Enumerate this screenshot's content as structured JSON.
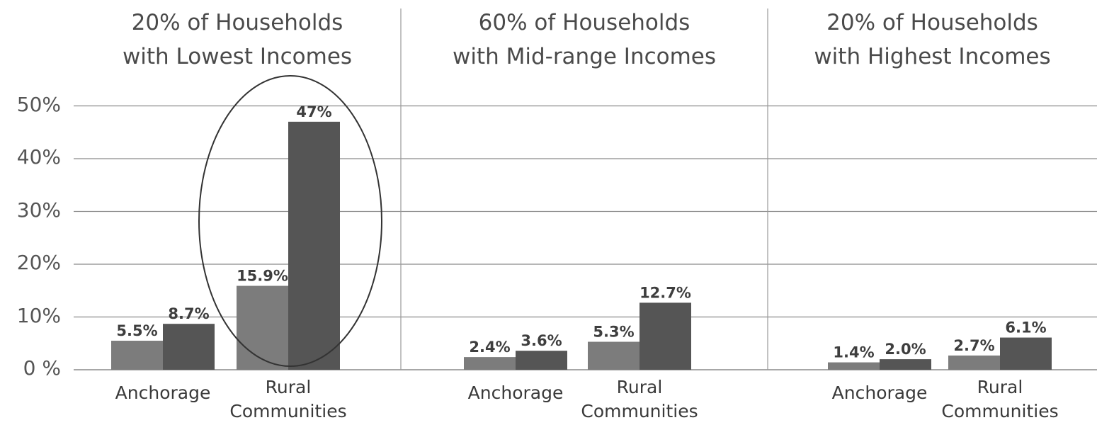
{
  "chart_data": {
    "type": "bar",
    "ylim": [
      0,
      50
    ],
    "yticks": [
      "0 %",
      "10%",
      "20%",
      "30%",
      "40%",
      "50%"
    ],
    "grid": true,
    "colors": {
      "bar_light": "#7c7c7c",
      "bar_dark": "#555555",
      "grid": "#8a8a8a",
      "annotation": "#333333"
    },
    "panels": [
      {
        "title": [
          "20% of Households",
          "with Lowest Incomes"
        ],
        "groups": [
          {
            "label": [
              "Anchorage"
            ],
            "values": [
              5.5,
              8.7
            ],
            "value_labels": [
              "5.5%",
              "8.7%"
            ]
          },
          {
            "label": [
              "Rural",
              "Communities"
            ],
            "values": [
              15.9,
              47
            ],
            "value_labels": [
              "15.9%",
              "47%"
            ]
          }
        ],
        "highlight": true
      },
      {
        "title": [
          "60% of Households",
          "with Mid-range Incomes"
        ],
        "groups": [
          {
            "label": [
              "Anchorage"
            ],
            "values": [
              2.4,
              3.6
            ],
            "value_labels": [
              "2.4%",
              "3.6%"
            ]
          },
          {
            "label": [
              "Rural",
              "Communities"
            ],
            "values": [
              5.3,
              12.7
            ],
            "value_labels": [
              "5.3%",
              "12.7%"
            ]
          }
        ]
      },
      {
        "title": [
          "20% of Households",
          "with Highest Incomes"
        ],
        "groups": [
          {
            "label": [
              "Anchorage"
            ],
            "values": [
              1.4,
              2.0
            ],
            "value_labels": [
              "1.4%",
              "2.0%"
            ]
          },
          {
            "label": [
              "Rural",
              "Communities"
            ],
            "values": [
              2.7,
              6.1
            ],
            "value_labels": [
              "2.7%",
              "6.1%"
            ]
          }
        ]
      }
    ]
  }
}
